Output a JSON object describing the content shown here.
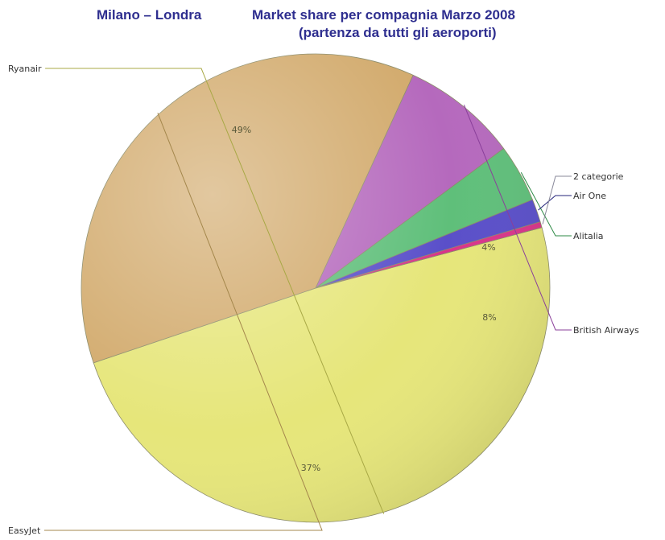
{
  "header": {
    "route": "Milano – Londra",
    "title_line1": "Market share per compagnia Marzo 2008",
    "title_line2": "(partenza da tutti gli aeroporti)"
  },
  "chart_data": {
    "type": "pie",
    "title": "Market share per compagnia Marzo 2008 (partenza da tutti gli aeroporti)",
    "start_angle_deg": 345,
    "direction": "clockwise",
    "slices": [
      {
        "label": "Ryanair",
        "value": 49,
        "value_label": "49%",
        "color": "#e6e67a"
      },
      {
        "label": "EasyJet",
        "value": 37,
        "value_label": "37%",
        "color": "#d2aa6c"
      },
      {
        "label": "British Airways",
        "value": 8,
        "value_label": "8%",
        "color": "#b569bd"
      },
      {
        "label": "Alitalia",
        "value": 4,
        "value_label": "4%",
        "color": "#5fbf7a"
      },
      {
        "label": "Air One",
        "value": 1.6,
        "value_label": "",
        "color": "#5a4fc9"
      },
      {
        "label": "2 categorie",
        "value": 0.4,
        "value_label": "",
        "color": "#d9348a"
      }
    ],
    "leader_colors": {
      "Ryanair": "#a8a845",
      "EasyJet": "#a4874c",
      "British Airways": "#8a3f9a",
      "Alitalia": "#2e8a46",
      "Air One": "#23237a",
      "2 categorie": "#888899"
    }
  }
}
